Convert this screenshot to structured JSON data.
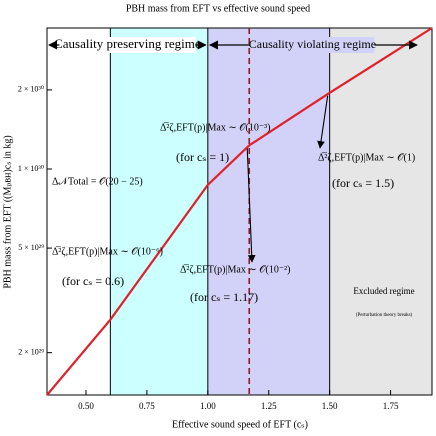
{
  "chart_data": {
    "type": "line",
    "title": "PBH mass from EFT vs effective sound speed",
    "x_label": "Effective sound speed of EFT (cₛ)",
    "y_label": "PBH mass from EFT ((Mₚʙʜ)cₛ in kg)",
    "x": [
      0.34,
      0.6,
      1.0,
      1.17,
      1.5,
      1.92
    ],
    "series": [
      {
        "color": "#e0202a",
        "values": [
          1.38e+29,
          2.67e+29,
          8.7e+29,
          1.23e+30,
          1.95e+30,
          3.44e+30
        ]
      }
    ],
    "xlim": [
      0.34,
      1.92
    ],
    "xticks": [
      {
        "value": 0.5,
        "label": "0.50"
      },
      0.75,
      {
        "value": 1.0,
        "label": "1.00"
      },
      1.25,
      {
        "value": 1.5,
        "label": "1.50"
      },
      1.75
    ],
    "ylim": [
      1.38e+29,
      3.44e+30
    ],
    "yticks": [
      {
        "value": 2e+29,
        "label": "2 × 10²⁹"
      },
      {
        "value": 5e+29,
        "label": "5 × 10²⁹"
      },
      {
        "value": 1e+30,
        "label": "1 × 10³⁰"
      },
      {
        "value": 2e+30,
        "label": "2 × 10³⁰"
      }
    ],
    "log_y": true,
    "regions": [
      {
        "from": 0.6,
        "to": 1.0,
        "color": "#ccffff"
      },
      {
        "from": 1.0,
        "to": 1.5,
        "color": "#d2d2f8"
      },
      {
        "from": 1.5,
        "to": 1.92,
        "color": "#e6e6e6"
      }
    ],
    "vline": {
      "x": 1.17,
      "color": "#8b1a2a"
    },
    "regime_labels": [
      "Causality preserving regime",
      "Causality violating regime"
    ],
    "excluded_label": "Excluded regime",
    "excluded_note": "(Perturbation theory breaks)",
    "efolds_label": "Δ𝒩Total = 𝒪(20 − 25)",
    "annotations": [
      {
        "text": "Δ̅²ζ,EFT(p)|Max ∼ 𝒪(10⁻⁶)",
        "condition": "(for cₛ = 0.6)"
      },
      {
        "text": "Δ̅²ζ,EFT(p)|Max ∼ 𝒪(10⁻³)",
        "condition": "(for cₛ = 1)"
      },
      {
        "text": "Δ̅²ζ,EFT(p)|Max ∼ 𝒪(10⁻²)",
        "condition": "(for cₛ = 1.17)"
      },
      {
        "text": "Δ̅²ζ,EFT(p)|Max ∼ 𝒪(1)",
        "condition": "(for cₛ = 1.5)"
      }
    ]
  }
}
